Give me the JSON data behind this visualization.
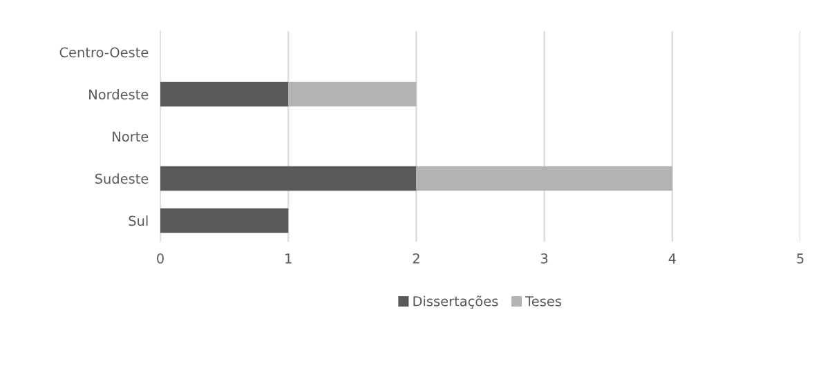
{
  "chart_data": {
    "type": "bar",
    "orientation": "horizontal",
    "stacked": true,
    "categories": [
      "Centro-Oeste",
      "Nordeste",
      "Norte",
      "Sudeste",
      "Sul"
    ],
    "series": [
      {
        "name": "Dissertações",
        "color": "#595959",
        "values": [
          0,
          1,
          0,
          2,
          1
        ]
      },
      {
        "name": "Teses",
        "color": "#b3b3b3",
        "values": [
          0,
          1,
          0,
          2,
          0
        ]
      }
    ],
    "xlim": [
      0,
      5
    ],
    "xticks": [
      0,
      1,
      2,
      3,
      4,
      5
    ],
    "grid": "x",
    "legend": "bottom"
  }
}
